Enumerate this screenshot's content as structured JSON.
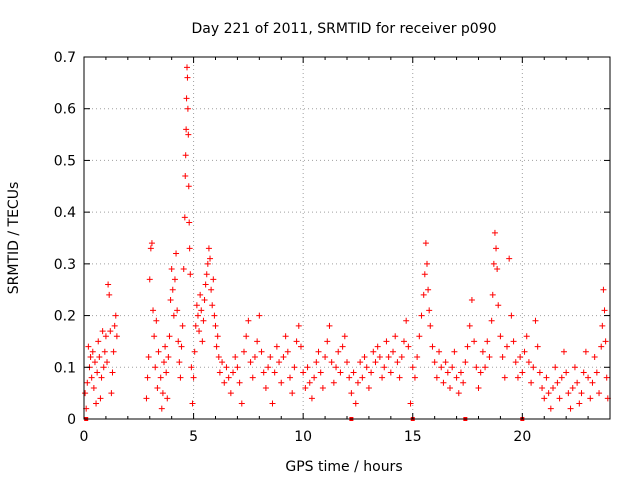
{
  "chart_data": {
    "type": "scatter",
    "title": "Day 221 of 2011, SRMTID for receiver p090",
    "xlabel": "GPS time / hours",
    "ylabel": "SRMTID / TECUs",
    "xlim": [
      0,
      24
    ],
    "ylim": [
      0,
      0.7
    ],
    "xticks": [
      0,
      5,
      10,
      15,
      20
    ],
    "yticks": [
      0,
      0.1,
      0.2,
      0.3,
      0.4,
      0.5,
      0.6,
      0.7
    ],
    "xtick_labels": [
      "0",
      "5",
      "10",
      "15",
      "20"
    ],
    "ytick_labels": [
      "0",
      "0.1",
      "0.2",
      "0.3",
      "0.4",
      "0.5",
      "0.6",
      "0.7"
    ],
    "grid": true,
    "marker": "+",
    "series": [
      {
        "name": "SRMTID",
        "color": "#ff0000",
        "points": [
          [
            0.05,
            0.05
          ],
          [
            0.1,
            0.02
          ],
          [
            0.15,
            0.07
          ],
          [
            0.2,
            0.14
          ],
          [
            0.25,
            0.1
          ],
          [
            0.3,
            0.12
          ],
          [
            0.35,
            0.08
          ],
          [
            0.4,
            0.13
          ],
          [
            0.45,
            0.06
          ],
          [
            0.5,
            0.11
          ],
          [
            0.55,
            0.03
          ],
          [
            0.6,
            0.09
          ],
          [
            0.65,
            0.15
          ],
          [
            0.7,
            0.12
          ],
          [
            0.75,
            0.04
          ],
          [
            0.8,
            0.08
          ],
          [
            0.85,
            0.17
          ],
          [
            0.9,
            0.1
          ],
          [
            0.95,
            0.13
          ],
          [
            1.0,
            0.16
          ],
          [
            1.05,
            0.11
          ],
          [
            1.1,
            0.26
          ],
          [
            1.15,
            0.24
          ],
          [
            1.2,
            0.17
          ],
          [
            1.25,
            0.05
          ],
          [
            1.3,
            0.09
          ],
          [
            1.35,
            0.13
          ],
          [
            1.4,
            0.18
          ],
          [
            1.45,
            0.2
          ],
          [
            1.5,
            0.16
          ],
          [
            2.85,
            0.04
          ],
          [
            2.9,
            0.08
          ],
          [
            2.95,
            0.12
          ],
          [
            3.0,
            0.27
          ],
          [
            3.05,
            0.33
          ],
          [
            3.1,
            0.34
          ],
          [
            3.15,
            0.21
          ],
          [
            3.2,
            0.16
          ],
          [
            3.25,
            0.1
          ],
          [
            3.3,
            0.19
          ],
          [
            3.35,
            0.06
          ],
          [
            3.4,
            0.13
          ],
          [
            3.5,
            0.08
          ],
          [
            3.55,
            0.02
          ],
          [
            3.6,
            0.05
          ],
          [
            3.65,
            0.11
          ],
          [
            3.7,
            0.14
          ],
          [
            3.75,
            0.09
          ],
          [
            3.8,
            0.04
          ],
          [
            3.85,
            0.12
          ],
          [
            3.9,
            0.16
          ],
          [
            3.95,
            0.23
          ],
          [
            4.0,
            0.29
          ],
          [
            4.05,
            0.25
          ],
          [
            4.1,
            0.2
          ],
          [
            4.15,
            0.27
          ],
          [
            4.2,
            0.32
          ],
          [
            4.25,
            0.21
          ],
          [
            4.3,
            0.15
          ],
          [
            4.35,
            0.11
          ],
          [
            4.4,
            0.08
          ],
          [
            4.45,
            0.14
          ],
          [
            4.5,
            0.18
          ],
          [
            4.55,
            0.29
          ],
          [
            4.6,
            0.39
          ],
          [
            4.62,
            0.47
          ],
          [
            4.64,
            0.51
          ],
          [
            4.66,
            0.56
          ],
          [
            4.68,
            0.62
          ],
          [
            4.7,
            0.68
          ],
          [
            4.72,
            0.66
          ],
          [
            4.74,
            0.6
          ],
          [
            4.76,
            0.55
          ],
          [
            4.78,
            0.45
          ],
          [
            4.8,
            0.38
          ],
          [
            4.82,
            0.33
          ],
          [
            4.85,
            0.28
          ],
          [
            4.9,
            0.1
          ],
          [
            4.95,
            0.03
          ],
          [
            5.0,
            0.08
          ],
          [
            5.05,
            0.13
          ],
          [
            5.1,
            0.18
          ],
          [
            5.15,
            0.22
          ],
          [
            5.2,
            0.2
          ],
          [
            5.25,
            0.17
          ],
          [
            5.3,
            0.24
          ],
          [
            5.35,
            0.21
          ],
          [
            5.4,
            0.15
          ],
          [
            5.45,
            0.19
          ],
          [
            5.5,
            0.23
          ],
          [
            5.55,
            0.26
          ],
          [
            5.6,
            0.28
          ],
          [
            5.65,
            0.3
          ],
          [
            5.7,
            0.33
          ],
          [
            5.75,
            0.31
          ],
          [
            5.8,
            0.25
          ],
          [
            5.85,
            0.22
          ],
          [
            5.9,
            0.27
          ],
          [
            5.95,
            0.2
          ],
          [
            6.0,
            0.18
          ],
          [
            6.05,
            0.14
          ],
          [
            6.1,
            0.16
          ],
          [
            6.15,
            0.12
          ],
          [
            6.2,
            0.09
          ],
          [
            6.3,
            0.11
          ],
          [
            6.4,
            0.07
          ],
          [
            6.5,
            0.1
          ],
          [
            6.6,
            0.08
          ],
          [
            6.7,
            0.05
          ],
          [
            6.8,
            0.09
          ],
          [
            6.9,
            0.12
          ],
          [
            7.0,
            0.1
          ],
          [
            7.1,
            0.07
          ],
          [
            7.2,
            0.03
          ],
          [
            7.3,
            0.13
          ],
          [
            7.4,
            0.16
          ],
          [
            7.5,
            0.19
          ],
          [
            7.6,
            0.11
          ],
          [
            7.7,
            0.08
          ],
          [
            7.8,
            0.12
          ],
          [
            7.9,
            0.15
          ],
          [
            8.0,
            0.2
          ],
          [
            8.1,
            0.13
          ],
          [
            8.2,
            0.09
          ],
          [
            8.3,
            0.06
          ],
          [
            8.4,
            0.1
          ],
          [
            8.5,
            0.12
          ],
          [
            8.6,
            0.03
          ],
          [
            8.7,
            0.09
          ],
          [
            8.8,
            0.14
          ],
          [
            8.9,
            0.11
          ],
          [
            9.0,
            0.07
          ],
          [
            9.1,
            0.12
          ],
          [
            9.2,
            0.16
          ],
          [
            9.3,
            0.13
          ],
          [
            9.4,
            0.08
          ],
          [
            9.5,
            0.05
          ],
          [
            9.6,
            0.1
          ],
          [
            9.7,
            0.15
          ],
          [
            9.8,
            0.18
          ],
          [
            9.9,
            0.14
          ],
          [
            10.0,
            0.09
          ],
          [
            10.1,
            0.06
          ],
          [
            10.2,
            0.1
          ],
          [
            10.3,
            0.07
          ],
          [
            10.4,
            0.04
          ],
          [
            10.5,
            0.08
          ],
          [
            10.6,
            0.11
          ],
          [
            10.7,
            0.13
          ],
          [
            10.8,
            0.09
          ],
          [
            10.9,
            0.06
          ],
          [
            11.0,
            0.12
          ],
          [
            11.1,
            0.15
          ],
          [
            11.2,
            0.18
          ],
          [
            11.3,
            0.11
          ],
          [
            11.4,
            0.07
          ],
          [
            11.5,
            0.1
          ],
          [
            11.6,
            0.13
          ],
          [
            11.7,
            0.09
          ],
          [
            11.8,
            0.14
          ],
          [
            11.9,
            0.16
          ],
          [
            12.0,
            0.11
          ],
          [
            12.1,
            0.08
          ],
          [
            12.2,
            0.05
          ],
          [
            12.3,
            0.09
          ],
          [
            12.4,
            0.03
          ],
          [
            12.5,
            0.07
          ],
          [
            12.6,
            0.11
          ],
          [
            12.7,
            0.08
          ],
          [
            12.8,
            0.12
          ],
          [
            12.9,
            0.1
          ],
          [
            13.0,
            0.06
          ],
          [
            13.1,
            0.09
          ],
          [
            13.2,
            0.13
          ],
          [
            13.3,
            0.11
          ],
          [
            13.4,
            0.14
          ],
          [
            13.5,
            0.12
          ],
          [
            13.6,
            0.08
          ],
          [
            13.7,
            0.1
          ],
          [
            13.8,
            0.15
          ],
          [
            13.9,
            0.12
          ],
          [
            14.0,
            0.09
          ],
          [
            14.1,
            0.13
          ],
          [
            14.2,
            0.16
          ],
          [
            14.3,
            0.11
          ],
          [
            14.4,
            0.08
          ],
          [
            14.5,
            0.12
          ],
          [
            14.6,
            0.15
          ],
          [
            14.7,
            0.19
          ],
          [
            14.8,
            0.14
          ],
          [
            14.9,
            0.03
          ],
          [
            15.0,
            0.1
          ],
          [
            15.1,
            0.08
          ],
          [
            15.2,
            0.12
          ],
          [
            15.3,
            0.16
          ],
          [
            15.4,
            0.2
          ],
          [
            15.5,
            0.24
          ],
          [
            15.55,
            0.28
          ],
          [
            15.6,
            0.34
          ],
          [
            15.65,
            0.3
          ],
          [
            15.7,
            0.25
          ],
          [
            15.75,
            0.21
          ],
          [
            15.8,
            0.18
          ],
          [
            15.9,
            0.14
          ],
          [
            16.0,
            0.11
          ],
          [
            16.1,
            0.08
          ],
          [
            16.2,
            0.13
          ],
          [
            16.3,
            0.1
          ],
          [
            16.4,
            0.07
          ],
          [
            16.5,
            0.11
          ],
          [
            16.6,
            0.09
          ],
          [
            16.7,
            0.06
          ],
          [
            16.8,
            0.1
          ],
          [
            16.9,
            0.13
          ],
          [
            17.0,
            0.08
          ],
          [
            17.1,
            0.05
          ],
          [
            17.2,
            0.09
          ],
          [
            17.3,
            0.07
          ],
          [
            17.4,
            0.11
          ],
          [
            17.5,
            0.14
          ],
          [
            17.6,
            0.18
          ],
          [
            17.7,
            0.23
          ],
          [
            17.8,
            0.15
          ],
          [
            17.9,
            0.1
          ],
          [
            18.0,
            0.06
          ],
          [
            18.1,
            0.09
          ],
          [
            18.2,
            0.13
          ],
          [
            18.3,
            0.1
          ],
          [
            18.4,
            0.15
          ],
          [
            18.5,
            0.12
          ],
          [
            18.6,
            0.19
          ],
          [
            18.65,
            0.24
          ],
          [
            18.7,
            0.3
          ],
          [
            18.75,
            0.36
          ],
          [
            18.8,
            0.33
          ],
          [
            18.85,
            0.29
          ],
          [
            18.9,
            0.22
          ],
          [
            19.0,
            0.16
          ],
          [
            19.1,
            0.12
          ],
          [
            19.2,
            0.08
          ],
          [
            19.3,
            0.14
          ],
          [
            19.4,
            0.31
          ],
          [
            19.5,
            0.2
          ],
          [
            19.6,
            0.15
          ],
          [
            19.7,
            0.11
          ],
          [
            19.8,
            0.08
          ],
          [
            19.9,
            0.12
          ],
          [
            20.0,
            0.09
          ],
          [
            20.1,
            0.13
          ],
          [
            20.2,
            0.16
          ],
          [
            20.3,
            0.11
          ],
          [
            20.4,
            0.07
          ],
          [
            20.5,
            0.1
          ],
          [
            20.6,
            0.19
          ],
          [
            20.7,
            0.14
          ],
          [
            20.8,
            0.09
          ],
          [
            20.9,
            0.06
          ],
          [
            21.0,
            0.04
          ],
          [
            21.1,
            0.08
          ],
          [
            21.2,
            0.05
          ],
          [
            21.3,
            0.02
          ],
          [
            21.4,
            0.06
          ],
          [
            21.5,
            0.1
          ],
          [
            21.6,
            0.07
          ],
          [
            21.7,
            0.04
          ],
          [
            21.8,
            0.08
          ],
          [
            21.9,
            0.13
          ],
          [
            22.0,
            0.09
          ],
          [
            22.1,
            0.05
          ],
          [
            22.2,
            0.02
          ],
          [
            22.3,
            0.06
          ],
          [
            22.4,
            0.1
          ],
          [
            22.5,
            0.07
          ],
          [
            22.6,
            0.03
          ],
          [
            22.7,
            0.05
          ],
          [
            22.8,
            0.09
          ],
          [
            22.9,
            0.13
          ],
          [
            23.0,
            0.08
          ],
          [
            23.1,
            0.04
          ],
          [
            23.2,
            0.07
          ],
          [
            23.3,
            0.12
          ],
          [
            23.4,
            0.09
          ],
          [
            23.5,
            0.05
          ],
          [
            23.6,
            0.14
          ],
          [
            23.65,
            0.18
          ],
          [
            23.7,
            0.25
          ],
          [
            23.75,
            0.21
          ],
          [
            23.8,
            0.15
          ],
          [
            23.85,
            0.08
          ],
          [
            23.9,
            0.04
          ]
        ],
        "axis_markers_x": [
          0.1,
          12.2,
          15.0,
          17.4,
          20.0
        ]
      }
    ]
  }
}
